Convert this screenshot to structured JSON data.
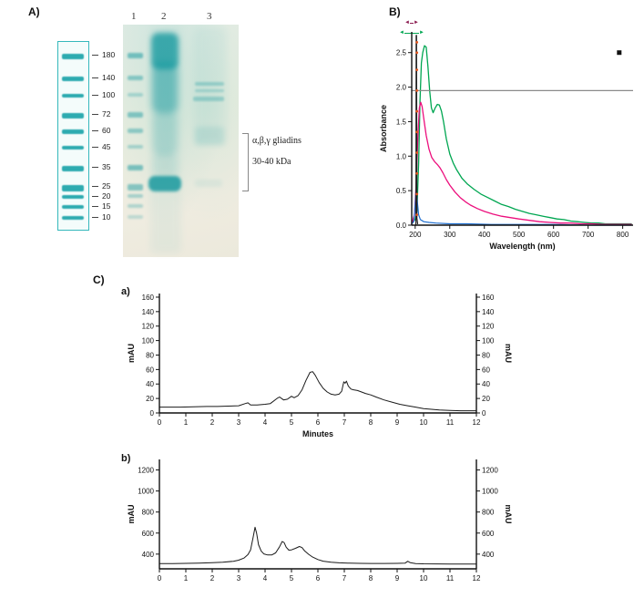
{
  "panel_a": {
    "label": "A)",
    "lane_numbers": [
      "1",
      "2",
      "3"
    ],
    "ladder_kda_labels": [
      "180",
      "140",
      "100",
      "72",
      "60",
      "45",
      "35",
      "25",
      "20",
      "15",
      "10"
    ],
    "annotation": {
      "line1": "α,β,γ gliadins",
      "line2": "30-40 kDa"
    }
  },
  "panel_b": {
    "label": "B)",
    "cursor_left": "◄",
    "cursor_right": "►",
    "cursor_color_small": "#8b1a4f",
    "cursor_color_wide": "#00a651"
  },
  "panel_c": {
    "label": "C)",
    "subpanel_a_label": "a)",
    "subpanel_b_label": "b)"
  },
  "colors": {
    "gel_band_teal": "#0d949b",
    "uv_green": "#00a651",
    "uv_pink": "#ec0f7d",
    "uv_blue": "#1f6fd0",
    "uv_dark": "#222222",
    "uv_orange_dots": "#e3541c",
    "ref_line_gray": "#8a8a8a",
    "chromatogram_line": "#1a1a1a"
  },
  "chart_data": [
    {
      "id": "uv_spectrum",
      "type": "line",
      "title": "",
      "xlabel": "Wavelength (nm)",
      "ylabel": "Absorbance",
      "xlim": [
        190,
        830
      ],
      "ylim": [
        0,
        2.8
      ],
      "xticks": [
        200,
        300,
        400,
        500,
        600,
        700,
        800
      ],
      "yticks": [
        0.0,
        0.5,
        1.0,
        1.5,
        2.0,
        2.5
      ],
      "ref_line": 1.95,
      "series": [
        {
          "name": "green-spectrum",
          "color": "#00a651",
          "width": 1.3,
          "points": [
            [
              190,
              0.04
            ],
            [
              200,
              0.08
            ],
            [
              205,
              0.2
            ],
            [
              210,
              0.9
            ],
            [
              214,
              1.8
            ],
            [
              218,
              2.35
            ],
            [
              222,
              2.5
            ],
            [
              227,
              2.6
            ],
            [
              232,
              2.58
            ],
            [
              237,
              2.3
            ],
            [
              242,
              1.95
            ],
            [
              247,
              1.7
            ],
            [
              252,
              1.63
            ],
            [
              258,
              1.7
            ],
            [
              264,
              1.75
            ],
            [
              270,
              1.74
            ],
            [
              276,
              1.65
            ],
            [
              282,
              1.5
            ],
            [
              290,
              1.25
            ],
            [
              300,
              1.03
            ],
            [
              310,
              0.9
            ],
            [
              320,
              0.8
            ],
            [
              335,
              0.68
            ],
            [
              350,
              0.6
            ],
            [
              370,
              0.52
            ],
            [
              390,
              0.45
            ],
            [
              410,
              0.4
            ],
            [
              430,
              0.35
            ],
            [
              450,
              0.3
            ],
            [
              470,
              0.27
            ],
            [
              490,
              0.23
            ],
            [
              510,
              0.2
            ],
            [
              530,
              0.17
            ],
            [
              550,
              0.15
            ],
            [
              570,
              0.13
            ],
            [
              590,
              0.11
            ],
            [
              610,
              0.09
            ],
            [
              630,
              0.08
            ],
            [
              650,
              0.06
            ],
            [
              670,
              0.05
            ],
            [
              690,
              0.04
            ],
            [
              710,
              0.03
            ],
            [
              730,
              0.03
            ],
            [
              750,
              0.02
            ],
            [
              770,
              0.02
            ],
            [
              790,
              0.02
            ],
            [
              810,
              0.02
            ],
            [
              825,
              0.02
            ]
          ]
        },
        {
          "name": "pink-spectrum",
          "color": "#ec0f7d",
          "width": 1.3,
          "points": [
            [
              190,
              0.02
            ],
            [
              198,
              0.15
            ],
            [
              203,
              0.6
            ],
            [
              208,
              1.3
            ],
            [
              212,
              1.7
            ],
            [
              216,
              1.78
            ],
            [
              220,
              1.72
            ],
            [
              226,
              1.5
            ],
            [
              232,
              1.3
            ],
            [
              240,
              1.1
            ],
            [
              248,
              0.98
            ],
            [
              256,
              0.92
            ],
            [
              264,
              0.88
            ],
            [
              272,
              0.83
            ],
            [
              280,
              0.76
            ],
            [
              290,
              0.66
            ],
            [
              300,
              0.58
            ],
            [
              315,
              0.48
            ],
            [
              330,
              0.4
            ],
            [
              345,
              0.34
            ],
            [
              360,
              0.29
            ],
            [
              380,
              0.24
            ],
            [
              400,
              0.2
            ],
            [
              425,
              0.16
            ],
            [
              450,
              0.13
            ],
            [
              475,
              0.11
            ],
            [
              500,
              0.09
            ],
            [
              530,
              0.07
            ],
            [
              560,
              0.05
            ],
            [
              590,
              0.04
            ],
            [
              620,
              0.03
            ],
            [
              650,
              0.03
            ],
            [
              680,
              0.02
            ],
            [
              710,
              0.02
            ],
            [
              740,
              0.01
            ],
            [
              770,
              0.01
            ],
            [
              800,
              0.01
            ],
            [
              825,
              0.01
            ]
          ]
        },
        {
          "name": "blue-spectrum",
          "color": "#1f6fd0",
          "width": 1.2,
          "points": [
            [
              190,
              0.02
            ],
            [
              196,
              0.05
            ],
            [
              200,
              0.3
            ],
            [
              203,
              0.55
            ],
            [
              206,
              0.35
            ],
            [
              210,
              0.15
            ],
            [
              215,
              0.08
            ],
            [
              225,
              0.05
            ],
            [
              240,
              0.04
            ],
            [
              260,
              0.03
            ],
            [
              300,
              0.02
            ],
            [
              350,
              0.02
            ],
            [
              420,
              0.01
            ],
            [
              500,
              0.01
            ],
            [
              600,
              0.01
            ],
            [
              700,
              0.0
            ],
            [
              825,
              0.0
            ]
          ]
        },
        {
          "name": "dark-spike",
          "color": "#222222",
          "width": 1.2,
          "points": [
            [
              202,
              0.0
            ],
            [
              203,
              2.75
            ],
            [
              204,
              2.75
            ],
            [
              205,
              0.1
            ],
            [
              207,
              0.02
            ]
          ]
        }
      ],
      "scatter": [
        {
          "name": "orange-dot-column",
          "color": "#e3541c",
          "shape": "circle",
          "points": [
            [
              205,
              0.15
            ],
            [
              205,
              0.45
            ],
            [
              205,
              0.75
            ],
            [
              205,
              1.05
            ],
            [
              205,
              1.35
            ],
            [
              205,
              1.65
            ],
            [
              205,
              1.95
            ],
            [
              205,
              2.25
            ],
            [
              205,
              2.5
            ],
            [
              205,
              2.65
            ]
          ]
        },
        {
          "name": "black-square-marker",
          "color": "#111111",
          "shape": "square",
          "points": [
            [
              790,
              2.5
            ]
          ]
        }
      ]
    },
    {
      "id": "chromatogram_a",
      "type": "line",
      "title": "",
      "xlabel": "Minutes",
      "ylabel": "mAU",
      "ylabel_right": "mAU",
      "xlim": [
        0,
        12
      ],
      "ylim": [
        0,
        165
      ],
      "xticks": [
        0,
        1,
        2,
        3,
        4,
        5,
        6,
        7,
        8,
        9,
        10,
        11,
        12
      ],
      "yticks": [
        0,
        20,
        40,
        60,
        80,
        100,
        120,
        140,
        160
      ],
      "series": [
        {
          "name": "gliadin-chromatogram-a",
          "color": "#1a1a1a",
          "width": 1,
          "points": [
            [
              0,
              8
            ],
            [
              0.3,
              8
            ],
            [
              0.8,
              8
            ],
            [
              1.3,
              8.5
            ],
            [
              1.8,
              9
            ],
            [
              2.2,
              9
            ],
            [
              2.6,
              9.5
            ],
            [
              3.0,
              10
            ],
            [
              3.25,
              13
            ],
            [
              3.35,
              14
            ],
            [
              3.45,
              11
            ],
            [
              3.7,
              11
            ],
            [
              4.0,
              12
            ],
            [
              4.2,
              13
            ],
            [
              4.45,
              20
            ],
            [
              4.55,
              22
            ],
            [
              4.7,
              18
            ],
            [
              4.85,
              19
            ],
            [
              5.0,
              23
            ],
            [
              5.1,
              21
            ],
            [
              5.25,
              24
            ],
            [
              5.4,
              32
            ],
            [
              5.55,
              45
            ],
            [
              5.7,
              56
            ],
            [
              5.8,
              57
            ],
            [
              5.9,
              52
            ],
            [
              6.05,
              42
            ],
            [
              6.2,
              34
            ],
            [
              6.35,
              29
            ],
            [
              6.5,
              26
            ],
            [
              6.65,
              25
            ],
            [
              6.8,
              26
            ],
            [
              6.9,
              30
            ],
            [
              6.98,
              43
            ],
            [
              7.03,
              41
            ],
            [
              7.08,
              44
            ],
            [
              7.15,
              37
            ],
            [
              7.25,
              33
            ],
            [
              7.35,
              32
            ],
            [
              7.5,
              31
            ],
            [
              7.65,
              29
            ],
            [
              7.8,
              27
            ],
            [
              8.0,
              25
            ],
            [
              8.2,
              22
            ],
            [
              8.5,
              18
            ],
            [
              8.8,
              15
            ],
            [
              9.1,
              12
            ],
            [
              9.4,
              10
            ],
            [
              9.7,
              8
            ],
            [
              10.0,
              6
            ],
            [
              10.3,
              5
            ],
            [
              10.6,
              4
            ],
            [
              11.0,
              3.5
            ],
            [
              11.4,
              3
            ],
            [
              11.8,
              3
            ],
            [
              12,
              3
            ]
          ]
        }
      ]
    },
    {
      "id": "chromatogram_b",
      "type": "line",
      "title": "",
      "xlabel": "",
      "ylabel": "mAU",
      "ylabel_right": "mAU",
      "xlim": [
        0,
        12
      ],
      "ylim": [
        260,
        1300
      ],
      "xticks": [
        0,
        1,
        2,
        3,
        4,
        5,
        6,
        7,
        8,
        9,
        10,
        11,
        12
      ],
      "yticks": [
        400,
        600,
        800,
        1000,
        1200
      ],
      "series": [
        {
          "name": "gliadin-chromatogram-b",
          "color": "#1a1a1a",
          "width": 1,
          "points": [
            [
              0,
              310
            ],
            [
              0.5,
              310
            ],
            [
              1.0,
              312
            ],
            [
              1.5,
              314
            ],
            [
              2.0,
              318
            ],
            [
              2.4,
              322
            ],
            [
              2.8,
              332
            ],
            [
              3.0,
              342
            ],
            [
              3.2,
              362
            ],
            [
              3.35,
              395
            ],
            [
              3.45,
              440
            ],
            [
              3.55,
              560
            ],
            [
              3.62,
              655
            ],
            [
              3.68,
              600
            ],
            [
              3.75,
              490
            ],
            [
              3.85,
              430
            ],
            [
              3.95,
              402
            ],
            [
              4.1,
              392
            ],
            [
              4.25,
              392
            ],
            [
              4.4,
              412
            ],
            [
              4.55,
              470
            ],
            [
              4.65,
              520
            ],
            [
              4.72,
              510
            ],
            [
              4.8,
              465
            ],
            [
              4.9,
              438
            ],
            [
              5.0,
              440
            ],
            [
              5.15,
              455
            ],
            [
              5.3,
              472
            ],
            [
              5.4,
              462
            ],
            [
              5.5,
              430
            ],
            [
              5.65,
              398
            ],
            [
              5.8,
              372
            ],
            [
              6.0,
              348
            ],
            [
              6.2,
              333
            ],
            [
              6.5,
              322
            ],
            [
              6.8,
              317
            ],
            [
              7.2,
              314
            ],
            [
              7.6,
              312
            ],
            [
              8.0,
              311
            ],
            [
              8.5,
              311
            ],
            [
              9.0,
              312
            ],
            [
              9.3,
              314
            ],
            [
              9.4,
              332
            ],
            [
              9.5,
              318
            ],
            [
              9.7,
              310
            ],
            [
              10.0,
              308
            ],
            [
              10.5,
              307
            ],
            [
              11.0,
              306
            ],
            [
              11.5,
              306
            ],
            [
              12,
              306
            ]
          ]
        }
      ]
    }
  ]
}
